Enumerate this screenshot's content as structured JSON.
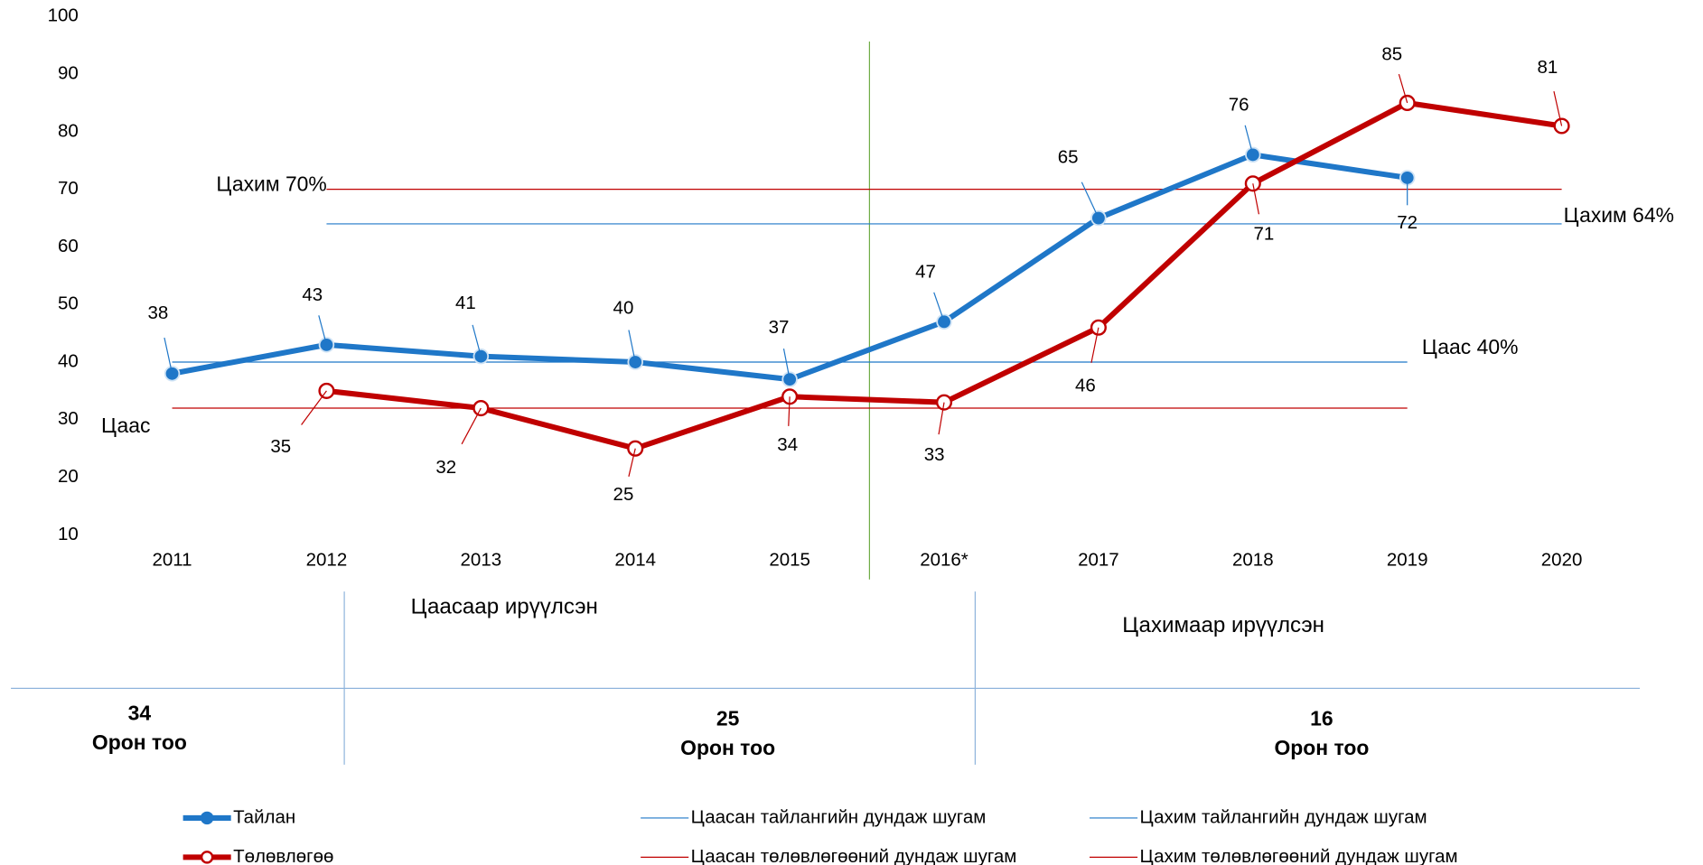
{
  "chart_data": {
    "type": "line",
    "categories": [
      "2011",
      "2012",
      "2013",
      "2014",
      "2015",
      "2016*",
      "2017",
      "2018",
      "2019",
      "2020"
    ],
    "series": [
      {
        "name": "Тайлан",
        "color": "#1f77c8",
        "values": [
          38,
          43,
          41,
          40,
          37,
          47,
          65,
          76,
          72,
          null
        ]
      },
      {
        "name": "Төлөвлөгөө",
        "color": "#c00000",
        "values": [
          null,
          35,
          32,
          25,
          34,
          33,
          46,
          71,
          85,
          81
        ]
      }
    ],
    "reference_lines": [
      {
        "name": "Цаасан тайлангийн дундаж шугам",
        "label": "Цаас 40%",
        "value": 40,
        "color": "#1f77c8"
      },
      {
        "name": "Цахим тайлангийн дундаж шугам",
        "label": "Цахим 64%",
        "value": 64,
        "color": "#1f77c8"
      },
      {
        "name": "Цаасан төлөвлөгөөний дундаж шугам",
        "label": "Цаас",
        "value": 32,
        "color": "#c00000"
      },
      {
        "name": "Цахим төлөвлөгөөний дундаж шугам",
        "label": "Цахим 70%",
        "value": 70,
        "color": "#c00000"
      }
    ],
    "ylim": [
      10,
      100
    ],
    "yticks": [
      10,
      20,
      30,
      40,
      50,
      60,
      70,
      80,
      90,
      100
    ],
    "periods": [
      {
        "label": "Цаасаар ирүүлсэн",
        "color": "#1f77c8"
      },
      {
        "label": "Цахимаар ирүүлсэн",
        "color": "#00a03c"
      }
    ],
    "seats": [
      {
        "count": 34,
        "unit": "Орон тоо"
      },
      {
        "count": 25,
        "unit": "Орон тоо"
      },
      {
        "count": 16,
        "unit": "Орон тоо"
      }
    ]
  }
}
